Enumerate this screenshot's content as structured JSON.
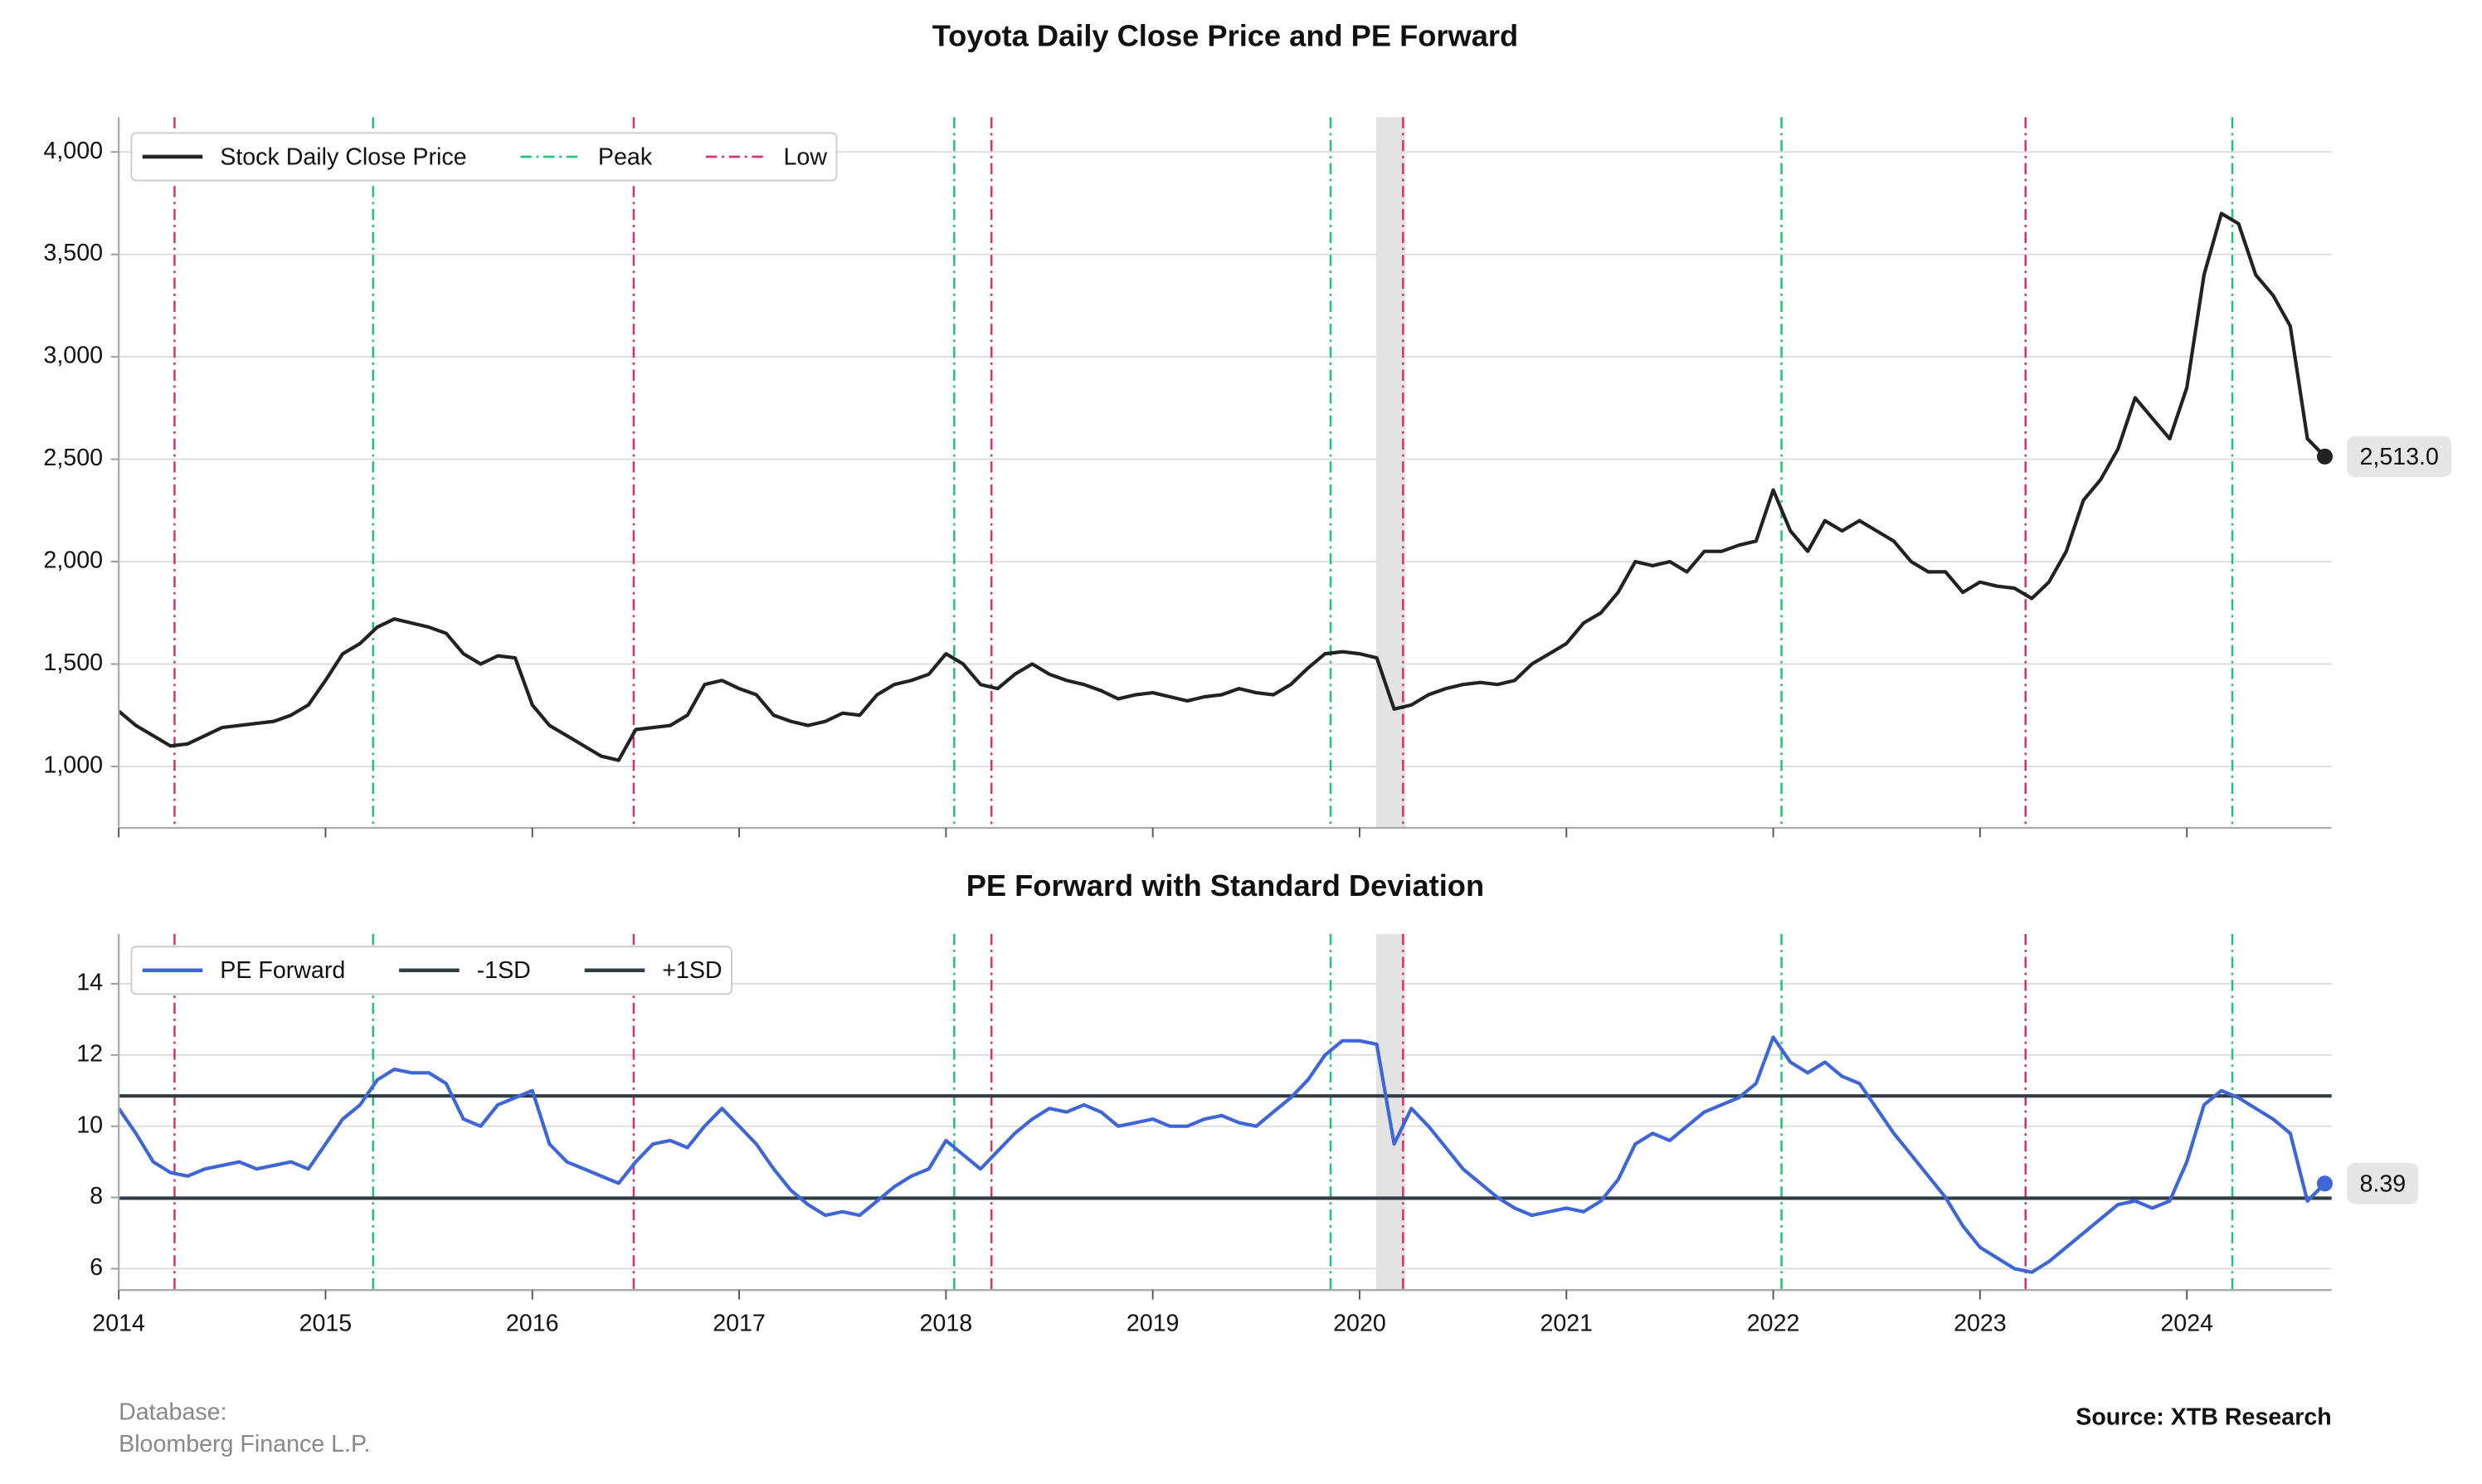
{
  "chart_data": [
    {
      "type": "line",
      "title": "Toyota Daily Close Price and PE Forward",
      "x": [
        2014,
        2014.083,
        2014.167,
        2014.25,
        2014.333,
        2014.417,
        2014.5,
        2014.583,
        2014.667,
        2014.75,
        2014.833,
        2014.917,
        2015,
        2015.083,
        2015.167,
        2015.25,
        2015.333,
        2015.417,
        2015.5,
        2015.583,
        2015.667,
        2015.75,
        2015.833,
        2015.917,
        2016,
        2016.083,
        2016.167,
        2016.25,
        2016.333,
        2016.417,
        2016.5,
        2016.583,
        2016.667,
        2016.75,
        2016.833,
        2016.917,
        2017,
        2017.083,
        2017.167,
        2017.25,
        2017.333,
        2017.417,
        2017.5,
        2017.583,
        2017.667,
        2017.75,
        2017.833,
        2017.917,
        2018,
        2018.083,
        2018.167,
        2018.25,
        2018.333,
        2018.417,
        2018.5,
        2018.583,
        2018.667,
        2018.75,
        2018.833,
        2018.917,
        2019,
        2019.083,
        2019.167,
        2019.25,
        2019.333,
        2019.417,
        2019.5,
        2019.583,
        2019.667,
        2019.75,
        2019.833,
        2019.917,
        2020,
        2020.083,
        2020.167,
        2020.25,
        2020.333,
        2020.417,
        2020.5,
        2020.583,
        2020.667,
        2020.75,
        2020.833,
        2020.917,
        2021,
        2021.083,
        2021.167,
        2021.25,
        2021.333,
        2021.417,
        2021.5,
        2021.583,
        2021.667,
        2021.75,
        2021.833,
        2021.917,
        2022,
        2022.083,
        2022.167,
        2022.25,
        2022.333,
        2022.417,
        2022.5,
        2022.583,
        2022.667,
        2022.75,
        2022.833,
        2022.917,
        2023,
        2023.083,
        2023.167,
        2023.25,
        2023.333,
        2023.417,
        2023.5,
        2023.583,
        2023.667,
        2023.75,
        2023.833,
        2023.917,
        2024,
        2024.083,
        2024.167,
        2024.25,
        2024.333,
        2024.417,
        2024.5,
        2024.583,
        2024.667
      ],
      "series": [
        {
          "name": "Stock Daily Close Price",
          "color": "#222222",
          "values": [
            1270,
            1200,
            1150,
            1100,
            1110,
            1150,
            1190,
            1200,
            1210,
            1220,
            1250,
            1300,
            1420,
            1550,
            1600,
            1680,
            1720,
            1700,
            1680,
            1650,
            1550,
            1500,
            1540,
            1530,
            1300,
            1200,
            1150,
            1100,
            1050,
            1030,
            1180,
            1190,
            1200,
            1250,
            1400,
            1420,
            1380,
            1350,
            1250,
            1220,
            1200,
            1220,
            1260,
            1250,
            1350,
            1400,
            1420,
            1450,
            1550,
            1500,
            1400,
            1380,
            1450,
            1500,
            1450,
            1420,
            1400,
            1370,
            1330,
            1350,
            1360,
            1340,
            1320,
            1340,
            1350,
            1380,
            1360,
            1350,
            1400,
            1480,
            1550,
            1560,
            1550,
            1530,
            1280,
            1300,
            1350,
            1380,
            1400,
            1410,
            1400,
            1420,
            1500,
            1550,
            1600,
            1700,
            1750,
            1850,
            2000,
            1980,
            2000,
            1950,
            2050,
            2050,
            2080,
            2100,
            2350,
            2150,
            2050,
            2200,
            2150,
            2200,
            2150,
            2100,
            2000,
            1950,
            1950,
            1850,
            1900,
            1880,
            1870,
            1820,
            1900,
            2050,
            2300,
            2400,
            2550,
            2800,
            2700,
            2600,
            2850,
            3400,
            3700,
            3650,
            3400,
            3300,
            3150,
            2600,
            2513
          ],
          "value_labels": {
            "128": "2,513.0"
          }
        }
      ],
      "peaks": {
        "name": "Peak",
        "color": "#1ec27a",
        "x": [
          2015.23,
          2018.04,
          2019.86,
          2022.04,
          2024.22
        ]
      },
      "lows": {
        "name": "Low",
        "color": "#d6306f",
        "x": [
          2014.27,
          2016.49,
          2018.22,
          2020.21,
          2023.22
        ]
      },
      "shade": [
        2020.08,
        2020.22
      ],
      "xlim": [
        2014,
        2024.7
      ],
      "xticks": [
        2014,
        2015,
        2016,
        2017,
        2018,
        2019,
        2020,
        2021,
        2022,
        2023,
        2024
      ],
      "ylim": [
        700,
        4170
      ],
      "yticks": [
        {
          "value": 1000,
          "label": "1,000"
        },
        {
          "value": 1500,
          "label": "1,500"
        },
        {
          "value": 2000,
          "label": "2,000"
        },
        {
          "value": 2500,
          "label": "2,500"
        },
        {
          "value": 3000,
          "label": "3,000"
        },
        {
          "value": 3500,
          "label": "3,500"
        },
        {
          "value": 4000,
          "label": "4,000"
        }
      ],
      "grid": true
    },
    {
      "type": "line",
      "title": "PE Forward with Standard Deviation",
      "series": [
        {
          "name": "PE Forward",
          "color": "#3f66d6",
          "values": [
            10.5,
            9.8,
            9.0,
            8.7,
            8.6,
            8.8,
            8.9,
            9.0,
            8.8,
            8.9,
            9.0,
            8.8,
            9.5,
            10.2,
            10.6,
            11.3,
            11.6,
            11.5,
            11.5,
            11.2,
            10.2,
            10.0,
            10.6,
            10.8,
            11.0,
            9.5,
            9.0,
            8.8,
            8.6,
            8.4,
            9.0,
            9.5,
            9.6,
            9.4,
            10.0,
            10.5,
            10.0,
            9.5,
            8.8,
            8.2,
            7.8,
            7.5,
            7.6,
            7.5,
            7.9,
            8.3,
            8.6,
            8.8,
            9.6,
            9.2,
            8.8,
            9.3,
            9.8,
            10.2,
            10.5,
            10.4,
            10.6,
            10.4,
            10.0,
            10.1,
            10.2,
            10.0,
            10.0,
            10.2,
            10.3,
            10.1,
            10.0,
            10.4,
            10.8,
            11.3,
            12.0,
            12.4,
            12.4,
            12.3,
            9.5,
            10.5,
            10.0,
            9.4,
            8.8,
            8.4,
            8.0,
            7.7,
            7.5,
            7.6,
            7.7,
            7.6,
            7.9,
            8.5,
            9.5,
            9.8,
            9.6,
            10.0,
            10.4,
            10.6,
            10.8,
            11.2,
            12.5,
            11.8,
            11.5,
            11.8,
            11.4,
            11.2,
            10.5,
            9.8,
            9.2,
            8.6,
            8.0,
            7.2,
            6.6,
            6.3,
            6.0,
            5.9,
            6.2,
            6.6,
            7.0,
            7.4,
            7.8,
            7.9,
            7.7,
            7.9,
            9.0,
            10.6,
            11.0,
            10.8,
            10.5,
            10.2,
            9.8,
            7.9,
            8.39
          ],
          "value_labels": {
            "128": "8.39"
          }
        }
      ],
      "hlines": [
        {
          "name": "-1SD",
          "color": "#323c44",
          "value": 7.98
        },
        {
          "name": "+1SD",
          "color": "#323c44",
          "value": 10.85
        }
      ],
      "ylim": [
        5.4,
        15.4
      ],
      "yticks": [
        6,
        8,
        10,
        12,
        14
      ],
      "grid": true
    }
  ],
  "footer": {
    "database": [
      "Database:",
      "Bloomberg Finance L.P."
    ],
    "source": "Source: XTB Research"
  }
}
